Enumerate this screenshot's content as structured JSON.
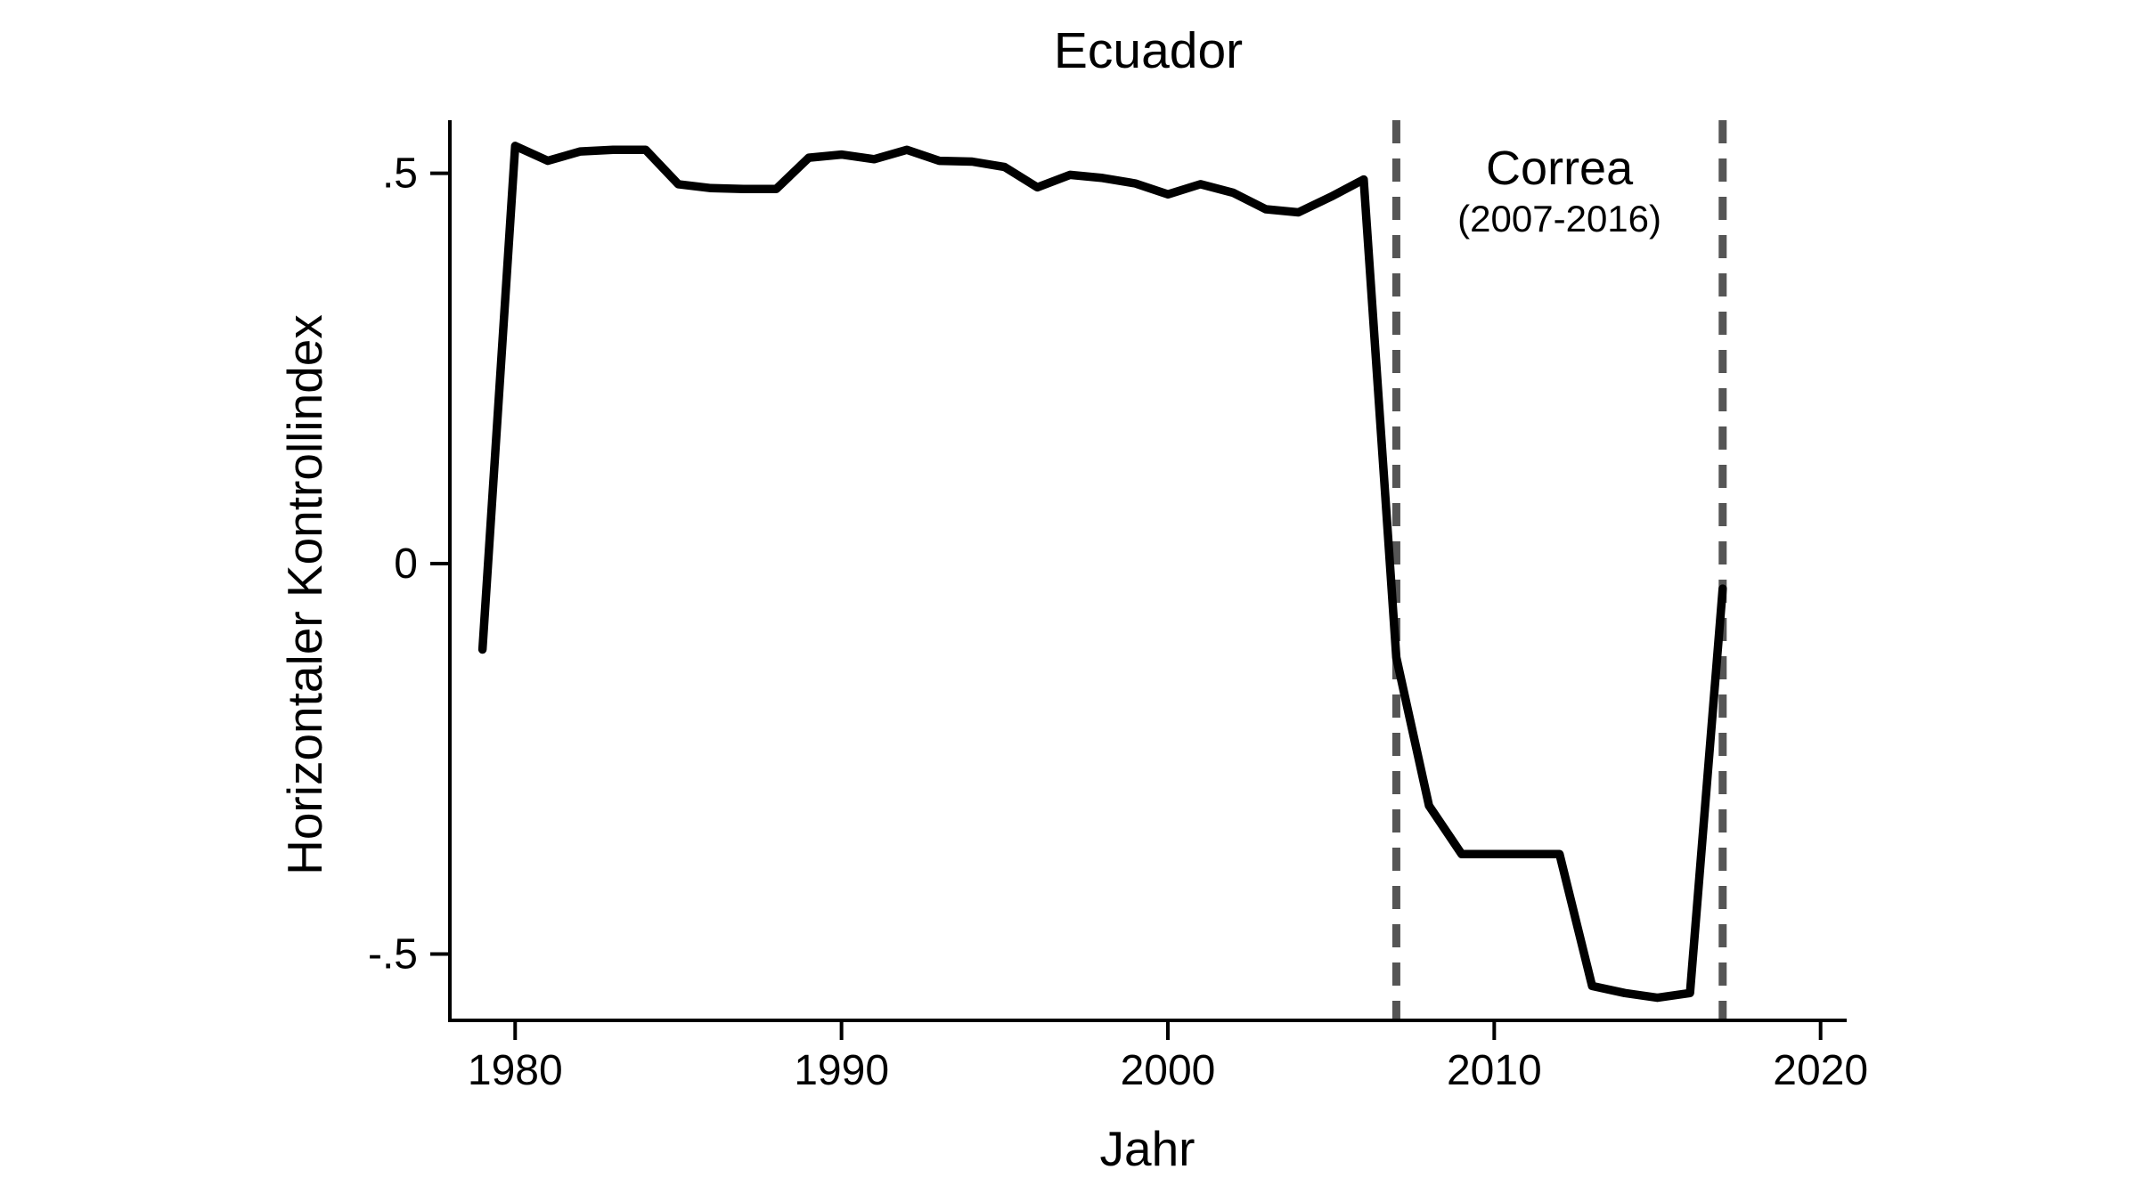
{
  "title": "Ecuador",
  "chart_data": {
    "type": "line",
    "title": "Ecuador",
    "xlabel": "Jahr",
    "ylabel": "Horizontaler Kontrollindex",
    "series_name": "Horizontaler Kontrollindex",
    "x": [
      1979,
      1980,
      1981,
      1982,
      1983,
      1984,
      1985,
      1986,
      1987,
      1988,
      1989,
      1990,
      1991,
      1992,
      1993,
      1994,
      1995,
      1996,
      1997,
      1998,
      1999,
      2000,
      2001,
      2002,
      2003,
      2004,
      2005,
      2006,
      2007,
      2008,
      2009,
      2010,
      2011,
      2012,
      2013,
      2014,
      2015,
      2016,
      2017
    ],
    "y": [
      -0.11,
      0.535,
      0.516,
      0.528,
      0.53,
      0.53,
      0.486,
      0.481,
      0.48,
      0.48,
      0.52,
      0.524,
      0.518,
      0.53,
      0.516,
      0.515,
      0.508,
      0.482,
      0.498,
      0.494,
      0.487,
      0.473,
      0.486,
      0.475,
      0.454,
      0.45,
      0.47,
      0.492,
      -0.12,
      -0.31,
      -0.372,
      -0.372,
      -0.372,
      -0.372,
      -0.541,
      -0.55,
      -0.556,
      -0.55,
      -0.032
    ],
    "xlim": [
      1978,
      2020.8
    ],
    "ylim": [
      -0.585,
      0.568
    ],
    "xticks": [
      {
        "value": 1980,
        "label": "1980"
      },
      {
        "value": 1990,
        "label": "1990"
      },
      {
        "value": 2000,
        "label": "2000"
      },
      {
        "value": 2010,
        "label": "2010"
      },
      {
        "value": 2020,
        "label": "2020"
      }
    ],
    "yticks": [
      {
        "value": 0.5,
        "label": ".5"
      },
      {
        "value": 0,
        "label": "0"
      },
      {
        "value": -0.5,
        "label": "-.5"
      }
    ],
    "grid": false,
    "legend": "none",
    "reference_lines": [
      {
        "x": 2007,
        "style": "dashed"
      },
      {
        "x": 2017,
        "style": "dashed"
      }
    ],
    "annotation": {
      "line1": "Correa",
      "line2": "(2007-2016)",
      "between_reference_lines": true
    },
    "colors": {
      "line": "#000000",
      "axis": "#000000",
      "reference_line": "#555555",
      "text": "#000000",
      "background": "#ffffff"
    }
  }
}
